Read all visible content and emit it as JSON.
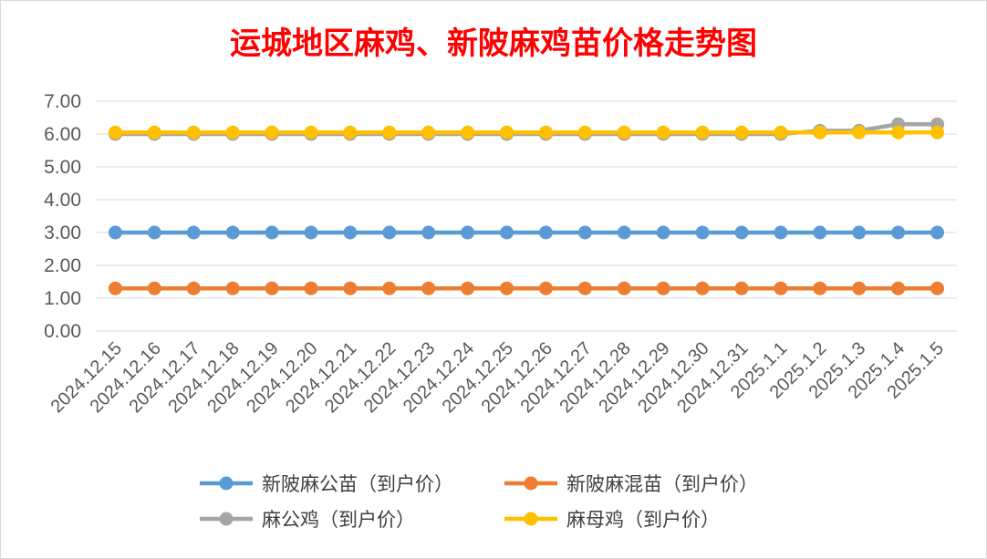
{
  "chart_data": {
    "type": "line",
    "title": "运城地区麻鸡、新陂麻鸡苗价格走势图",
    "title_color": "#ff0000",
    "xlabel": "",
    "ylabel": "",
    "ylim": [
      0,
      7
    ],
    "y_ticks": [
      "0.00",
      "1.00",
      "2.00",
      "3.00",
      "4.00",
      "5.00",
      "6.00",
      "7.00"
    ],
    "grid": true,
    "legend_position": "bottom",
    "categories": [
      "2024.12.15",
      "2024.12.16",
      "2024.12.17",
      "2024.12.18",
      "2024.12.19",
      "2024.12.20",
      "2024.12.21",
      "2024.12.22",
      "2024.12.23",
      "2024.12.24",
      "2024.12.25",
      "2024.12.26",
      "2024.12.27",
      "2024.12.28",
      "2024.12.29",
      "2024.12.30",
      "2024.12.31",
      "2025.1.1",
      "2025.1.2",
      "2025.1.3",
      "2025.1.4",
      "2025.1.5"
    ],
    "series": [
      {
        "name": "新陂麻公苗（到户价）",
        "color": "#5b9bd5",
        "values": [
          3.0,
          3.0,
          3.0,
          3.0,
          3.0,
          3.0,
          3.0,
          3.0,
          3.0,
          3.0,
          3.0,
          3.0,
          3.0,
          3.0,
          3.0,
          3.0,
          3.0,
          3.0,
          3.0,
          3.0,
          3.0,
          3.0
        ]
      },
      {
        "name": "新陂麻混苗（到户价）",
        "color": "#ed7d31",
        "values": [
          1.3,
          1.3,
          1.3,
          1.3,
          1.3,
          1.3,
          1.3,
          1.3,
          1.3,
          1.3,
          1.3,
          1.3,
          1.3,
          1.3,
          1.3,
          1.3,
          1.3,
          1.3,
          1.3,
          1.3,
          1.3,
          1.3
        ]
      },
      {
        "name": "麻公鸡（到户价）",
        "color": "#a5a5a5",
        "values": [
          6.0,
          6.0,
          6.0,
          6.0,
          6.0,
          6.0,
          6.0,
          6.0,
          6.0,
          6.0,
          6.0,
          6.0,
          6.0,
          6.0,
          6.0,
          6.0,
          6.0,
          6.0,
          6.1,
          6.1,
          6.3,
          6.3
        ]
      },
      {
        "name": "麻母鸡（到户价）",
        "color": "#ffc000",
        "values": [
          6.05,
          6.05,
          6.05,
          6.05,
          6.05,
          6.05,
          6.05,
          6.05,
          6.05,
          6.05,
          6.05,
          6.05,
          6.05,
          6.05,
          6.05,
          6.05,
          6.05,
          6.05,
          6.05,
          6.05,
          6.05,
          6.05
        ]
      }
    ]
  }
}
